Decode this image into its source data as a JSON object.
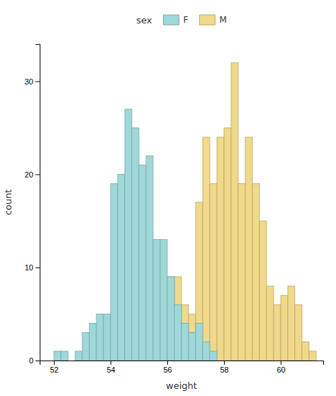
{
  "chart_data": {
    "type": "histogram",
    "xlabel": "weight",
    "ylabel": "count",
    "legend_title": "sex",
    "legend": "top",
    "grid": false,
    "xlim": [
      51.5,
      61.5
    ],
    "ylim": [
      0,
      34
    ],
    "xticks": [
      52,
      54,
      56,
      58,
      60
    ],
    "yticks": [
      0,
      10,
      20,
      30
    ],
    "series": [
      {
        "name": "F",
        "color": "#9ed8d8",
        "bins": [
          52.0,
          52.25,
          52.5,
          52.75,
          53.0,
          53.25,
          53.5,
          53.75,
          54.0,
          54.25,
          54.5,
          54.75,
          55.0,
          55.25,
          55.5,
          55.75,
          56.0,
          56.25,
          56.5,
          56.75,
          57.0,
          57.25,
          57.5,
          57.75
        ],
        "values": [
          1,
          1,
          0,
          1,
          3,
          4,
          5,
          5,
          19,
          20,
          27,
          25,
          21,
          22,
          13,
          13,
          9,
          6,
          4,
          3,
          4,
          2,
          1
        ]
      },
      {
        "name": "M",
        "color": "#f0d98a",
        "bins": [
          54.75,
          55.0,
          55.25,
          55.5,
          55.75,
          56.0,
          56.25,
          56.5,
          56.75,
          57.0,
          57.25,
          57.5,
          57.75,
          58.0,
          58.25,
          58.5,
          58.75,
          59.0,
          59.25,
          59.5,
          59.75,
          60.0,
          60.25,
          60.5,
          60.75,
          61.0,
          61.25
        ],
        "values": [
          1,
          1,
          2,
          1,
          2,
          9,
          9,
          6,
          5,
          17,
          24,
          19,
          24,
          25,
          32,
          19,
          24,
          19,
          15,
          8,
          6,
          7,
          8,
          6,
          2,
          1
        ]
      }
    ]
  }
}
